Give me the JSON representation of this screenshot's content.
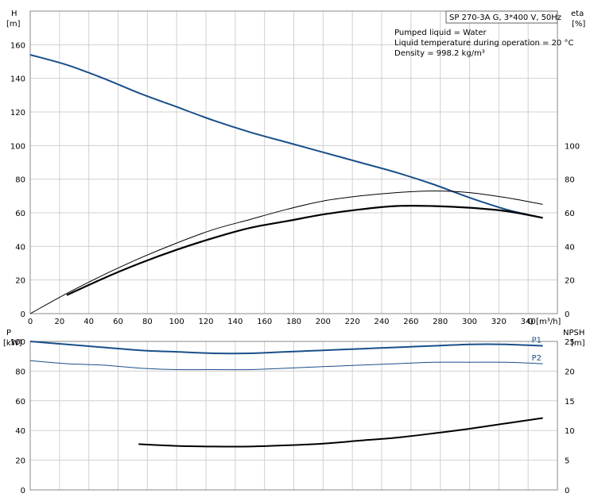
{
  "info_box": {
    "title": "SP 270-3A G, 3*400 V, 50Hz",
    "liquid": "Pumped liquid = Water",
    "temperature": "Liquid temperature during operation = 20 °C",
    "density": "Density = 998.2 kg/m³"
  },
  "chart_data": [
    {
      "type": "line",
      "xlabel": "Q [m³/h]",
      "ylabel": "H\n[m]",
      "ylabel_right": "eta\n[%]",
      "xlim": [
        0,
        360
      ],
      "ylim": [
        0,
        180
      ],
      "ylim_right": [
        0,
        180
      ],
      "x_ticks": [
        0,
        20,
        40,
        60,
        80,
        100,
        120,
        140,
        160,
        180,
        200,
        220,
        240,
        260,
        280,
        300,
        320,
        340
      ],
      "y_ticks": [
        0,
        20,
        40,
        60,
        80,
        100,
        120,
        140,
        160
      ],
      "y_ticks_right": [
        0,
        20,
        40,
        60,
        80,
        100
      ],
      "grid": true,
      "series": [
        {
          "role": "head",
          "axis": "left",
          "color": "#1a4f8a",
          "x": [
            0,
            25,
            50,
            75,
            100,
            125,
            150,
            175,
            200,
            225,
            250,
            275,
            300,
            325,
            350
          ],
          "y": [
            154,
            148,
            140,
            131,
            123,
            115,
            108,
            102,
            96,
            90,
            84,
            77,
            69,
            62,
            57
          ]
        },
        {
          "role": "efficiency-thin",
          "axis": "right",
          "color": "#000000",
          "x": [
            0,
            25,
            50,
            75,
            100,
            125,
            150,
            175,
            200,
            225,
            250,
            275,
            300,
            325,
            350
          ],
          "y": [
            0,
            12,
            23,
            33,
            42,
            50,
            56,
            62,
            67,
            70,
            72,
            73,
            72,
            69,
            65
          ]
        },
        {
          "role": "efficiency-thick",
          "axis": "right",
          "color": "#000000",
          "x": [
            25,
            50,
            75,
            100,
            125,
            150,
            175,
            200,
            225,
            250,
            275,
            300,
            325,
            350
          ],
          "y": [
            11,
            21,
            30,
            38,
            45,
            51,
            55,
            59,
            62,
            64,
            64,
            63,
            61,
            57
          ]
        }
      ]
    },
    {
      "type": "line",
      "xlabel": "",
      "ylabel": "P\n[kW]",
      "ylabel_right": "NPSH\n[m]",
      "xlim": [
        0,
        360
      ],
      "ylim": [
        0,
        100
      ],
      "ylim_right": [
        0,
        25
      ],
      "y_ticks": [
        0,
        20,
        40,
        60,
        80,
        100
      ],
      "y_ticks_right": [
        0,
        5,
        10,
        15,
        20,
        25
      ],
      "grid": true,
      "series": [
        {
          "name": "P1",
          "axis": "left",
          "color": "#1a4f8a",
          "width": 2,
          "x": [
            0,
            25,
            50,
            75,
            100,
            125,
            150,
            175,
            200,
            225,
            250,
            275,
            300,
            325,
            350
          ],
          "y": [
            100,
            98,
            96,
            94,
            93,
            92,
            92,
            93,
            94,
            95,
            96,
            97,
            98,
            98,
            97
          ]
        },
        {
          "name": "P2",
          "axis": "left",
          "color": "#1a4f8a",
          "width": 1,
          "x": [
            0,
            25,
            50,
            75,
            100,
            125,
            150,
            175,
            200,
            225,
            250,
            275,
            300,
            325,
            350
          ],
          "y": [
            87,
            85,
            84,
            82,
            81,
            81,
            81,
            82,
            83,
            84,
            85,
            86,
            86,
            86,
            85
          ]
        },
        {
          "role": "npsh",
          "axis": "right",
          "color": "#000000",
          "width": 2,
          "x": [
            74,
            100,
            125,
            150,
            175,
            200,
            225,
            250,
            275,
            300,
            325,
            350
          ],
          "y": [
            7.7,
            7.4,
            7.3,
            7.3,
            7.5,
            7.8,
            8.3,
            8.8,
            9.5,
            10.3,
            11.2,
            12.1
          ]
        }
      ]
    }
  ]
}
